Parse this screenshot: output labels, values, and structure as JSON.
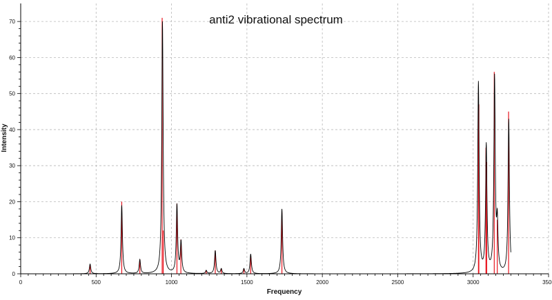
{
  "chart_data": {
    "type": "line",
    "title": "anti2 vibrational spectrum",
    "xlabel": "Frequency",
    "ylabel": "Intensity",
    "xlim": [
      0,
      3500
    ],
    "ylim": [
      0,
      75
    ],
    "x_ticks": [
      0,
      500,
      1000,
      1500,
      2000,
      2500,
      3000,
      3500
    ],
    "y_ticks": [
      0,
      10,
      20,
      30,
      40,
      50,
      60,
      70
    ],
    "grid": true,
    "legend": "none",
    "curve_color": "#000000",
    "stick_color": "#e8141e",
    "stick_values": [
      {
        "x": 460,
        "y": 2.5
      },
      {
        "x": 670,
        "y": 20
      },
      {
        "x": 790,
        "y": 4
      },
      {
        "x": 938,
        "y": 71
      },
      {
        "x": 945,
        "y": 12
      },
      {
        "x": 1036,
        "y": 19.5
      },
      {
        "x": 1062,
        "y": 9.5
      },
      {
        "x": 1230,
        "y": 1
      },
      {
        "x": 1290,
        "y": 6.5
      },
      {
        "x": 1330,
        "y": 1.5
      },
      {
        "x": 1480,
        "y": 1.5
      },
      {
        "x": 1525,
        "y": 5
      },
      {
        "x": 1732,
        "y": 17
      },
      {
        "x": 3035,
        "y": 50
      },
      {
        "x": 3038,
        "y": 47
      },
      {
        "x": 3085,
        "y": 35
      },
      {
        "x": 3090,
        "y": 31
      },
      {
        "x": 3140,
        "y": 56
      },
      {
        "x": 3160,
        "y": 15
      },
      {
        "x": 3235,
        "y": 45
      }
    ],
    "curve_peak_values": [
      {
        "x": 460,
        "y": 2.7
      },
      {
        "x": 670,
        "y": 19
      },
      {
        "x": 790,
        "y": 4
      },
      {
        "x": 940,
        "y": 70
      },
      {
        "x": 1036,
        "y": 19.5
      },
      {
        "x": 1063,
        "y": 9.5
      },
      {
        "x": 1230,
        "y": 1
      },
      {
        "x": 1290,
        "y": 6.5
      },
      {
        "x": 1330,
        "y": 1.5
      },
      {
        "x": 1480,
        "y": 1.5
      },
      {
        "x": 1525,
        "y": 5.5
      },
      {
        "x": 1732,
        "y": 18
      },
      {
        "x": 3035,
        "y": 53.5
      },
      {
        "x": 3087,
        "y": 36.5
      },
      {
        "x": 3142,
        "y": 55.5
      },
      {
        "x": 3160,
        "y": 18
      },
      {
        "x": 3236,
        "y": 43
      }
    ]
  }
}
